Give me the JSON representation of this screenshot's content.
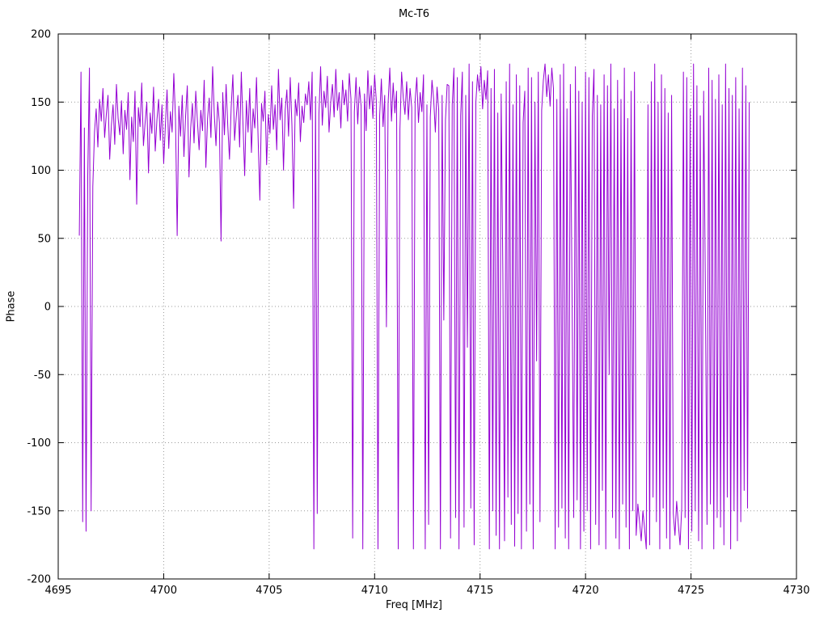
{
  "chart_data": {
    "type": "line",
    "title": "Mc-T6",
    "xlabel": "Freq [MHz]",
    "ylabel": "Phase",
    "xlim": [
      4695,
      4730
    ],
    "ylim": [
      -200,
      200
    ],
    "x_ticks": [
      4695,
      4700,
      4705,
      4710,
      4715,
      4720,
      4725,
      4730
    ],
    "y_ticks": [
      -200,
      -150,
      -100,
      -50,
      0,
      50,
      100,
      150,
      200
    ],
    "grid": "dotted",
    "legend": "none",
    "line_color": "#9400d3",
    "series": [
      {
        "name": "Mc-T6",
        "x_start": 4696.0,
        "x_step": 0.08,
        "y": [
          52,
          172,
          -158,
          131,
          -165,
          96,
          175,
          -150,
          88,
          128,
          145,
          117,
          152,
          136,
          160,
          124,
          141,
          155,
          108,
          133,
          148,
          119,
          163,
          138,
          126,
          151,
          112,
          144,
          130,
          157,
          93,
          139,
          121,
          158,
          75,
          146,
          132,
          164,
          118,
          135,
          150,
          98,
          142,
          127,
          161,
          114,
          137,
          152,
          122,
          148,
          105,
          133,
          159,
          116,
          143,
          128,
          171,
          138,
          52,
          147,
          125,
          155,
          110,
          140,
          162,
          95,
          131,
          149,
          120,
          158,
          136,
          115,
          144,
          129,
          166,
          102,
          138,
          153,
          124,
          176,
          141,
          118,
          150,
          135,
          48,
          157,
          126,
          163,
          132,
          108,
          146,
          170,
          122,
          139,
          155,
          117,
          172,
          134,
          96,
          151,
          128,
          160,
          113,
          145,
          131,
          168,
          122,
          78,
          149,
          136,
          158,
          104,
          141,
          127,
          162,
          130,
          148,
          115,
          174,
          137,
          153,
          100,
          144,
          159,
          125,
          168,
          133,
          72,
          152,
          140,
          164,
          121,
          147,
          135,
          156,
          148,
          165,
          137,
          172,
          -178,
          154,
          -152,
          141,
          176,
          133,
          158,
          146,
          169,
          128,
          150,
          163,
          139,
          174,
          144,
          157,
          131,
          166,
          148,
          159,
          136,
          171,
          152,
          -170,
          143,
          168,
          134,
          161,
          147,
          -178,
          156,
          129,
          173,
          145,
          162,
          138,
          170,
          151,
          -178,
          140,
          167,
          132,
          155,
          -15,
          149,
          175,
          136,
          164,
          142,
          158,
          -178,
          130,
          172,
          153,
          141,
          165,
          137,
          160,
          146,
          -178,
          151,
          168,
          135,
          157,
          143,
          170,
          -178,
          148,
          -160,
          139,
          166,
          152,
          128,
          161,
          144,
          -178,
          155,
          -10,
          137,
          163,
          162,
          -170,
          148,
          175,
          -155,
          168,
          -178,
          140,
          172,
          -162,
          155,
          -30,
          178,
          -148,
          165,
          -175,
          150,
          170,
          158,
          176,
          145,
          166,
          152,
          173,
          -178,
          160,
          -150,
          174,
          -168,
          142,
          -178,
          156,
          25,
          -172,
          165,
          -140,
          178,
          -160,
          148,
          -176,
          170,
          -152,
          162,
          -178,
          135,
          158,
          -165,
          175,
          -145,
          168,
          -178,
          150,
          -40,
          172,
          -158,
          144,
          166,
          178,
          154,
          170,
          147,
          175,
          160,
          -178,
          152,
          -162,
          170,
          -148,
          178,
          -170,
          145,
          -178,
          163,
          10,
          -155,
          176,
          -142,
          158,
          -178,
          150,
          -165,
          172,
          -150,
          168,
          -178,
          140,
          174,
          -160,
          155,
          -175,
          148,
          -135,
          170,
          -178,
          162,
          -50,
          178,
          -155,
          145,
          -170,
          166,
          -178,
          152,
          -145,
          175,
          -162,
          138,
          -178,
          158,
          -150,
          172,
          -168,
          -145,
          -158,
          -172,
          -150,
          -163,
          -178,
          148,
          -175,
          165,
          -140,
          178,
          -158,
          150,
          -178,
          170,
          -148,
          160,
          -170,
          142,
          -178,
          155,
          -152,
          -168,
          -143,
          -160,
          -175,
          -148,
          172,
          -155,
          168,
          -178,
          145,
          -165,
          178,
          -150,
          162,
          -172,
          140,
          -178,
          158,
          15,
          -160,
          175,
          -145,
          166,
          -178,
          152,
          -155,
          170,
          -162,
          148,
          -175,
          178,
          -140,
          160,
          -178,
          155,
          -150,
          168,
          -172,
          145,
          -158,
          175,
          -135,
          162,
          -148,
          150
        ]
      }
    ]
  }
}
